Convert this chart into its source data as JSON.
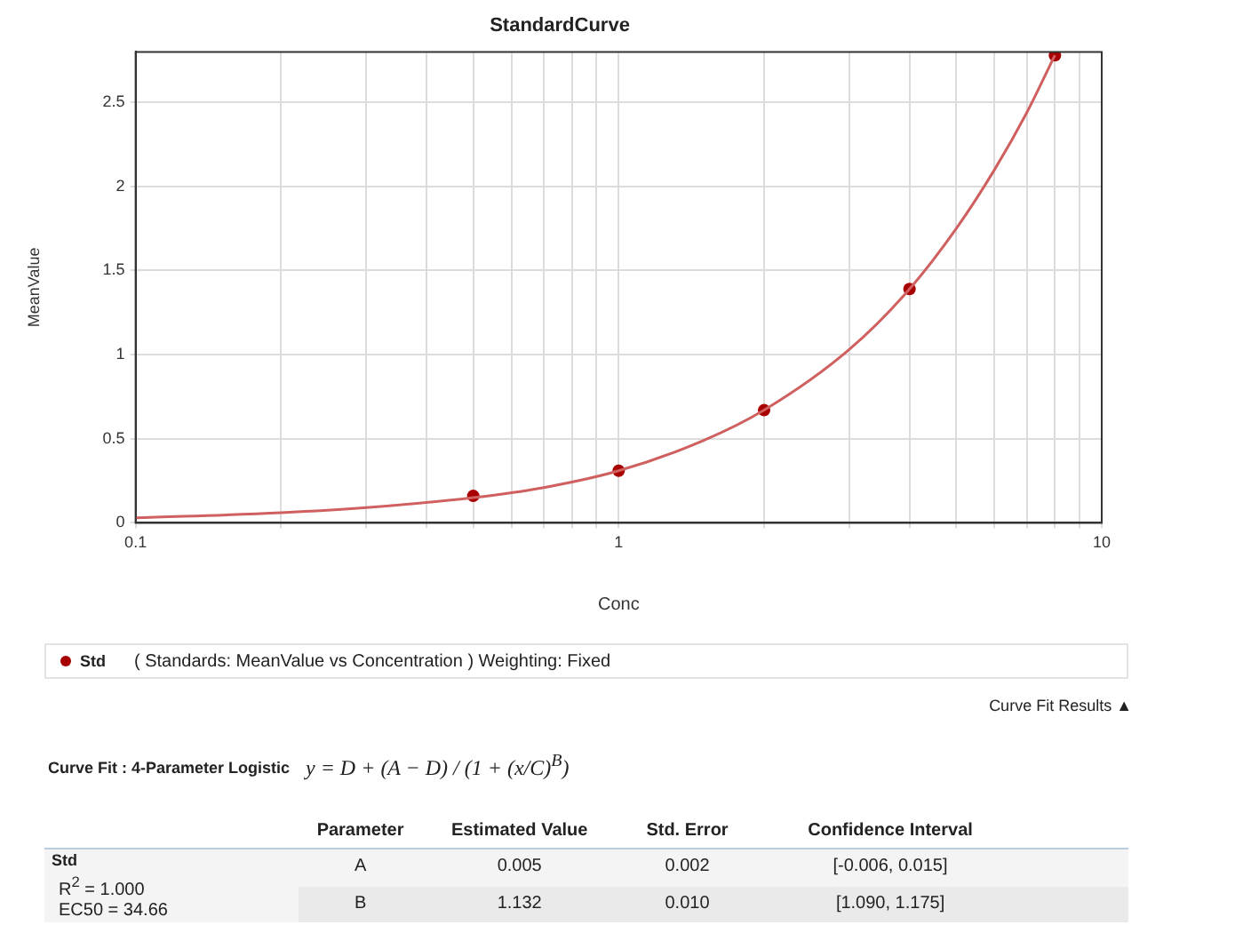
{
  "chart_data": {
    "type": "scatter",
    "title": "StandardCurve",
    "xlabel": "Conc",
    "ylabel": "MeanValue",
    "log": "x",
    "xlim": [
      0.1,
      10
    ],
    "xticks": [
      0.1,
      {
        "value": 0.2,
        "label": null
      },
      {
        "value": 0.3,
        "label": null
      },
      {
        "value": 0.4,
        "label": null
      },
      {
        "value": 0.5,
        "label": null
      },
      {
        "value": 0.6,
        "label": null
      },
      {
        "value": 0.7,
        "label": null
      },
      {
        "value": 0.8,
        "label": null
      },
      {
        "value": 0.9,
        "label": null
      },
      1,
      {
        "value": 2,
        "label": null
      },
      {
        "value": 3,
        "label": null
      },
      {
        "value": 4,
        "label": null
      },
      {
        "value": 5,
        "label": null
      },
      {
        "value": 6,
        "label": null
      },
      {
        "value": 7,
        "label": null
      },
      {
        "value": 8,
        "label": null
      },
      {
        "value": 9,
        "label": null
      },
      10
    ],
    "ylim": [
      0,
      2.8
    ],
    "yticks": [
      0,
      0.5,
      1,
      1.5,
      2,
      2.5
    ],
    "grid": true,
    "legend": "bottom",
    "series": [
      {
        "type": "line",
        "color": "#d06060",
        "marker": "none",
        "line_style": "solid",
        "x": [
          0.1,
          0.2,
          0.3,
          0.5,
          0.7,
          1,
          1.5,
          2,
          3,
          4,
          5,
          6,
          7,
          8
        ],
        "values": [
          0.03,
          0.06,
          0.09,
          0.15,
          0.21,
          0.31,
          0.49,
          0.67,
          1.03,
          1.39,
          1.75,
          2.1,
          2.44,
          2.78
        ]
      },
      {
        "type": "scatter",
        "name": "Std",
        "color": "#a80000",
        "marker": "circle",
        "x": [
          0.5,
          1,
          2,
          4,
          8
        ],
        "values": [
          0.16,
          0.31,
          0.67,
          1.39,
          2.78
        ]
      }
    ],
    "annotations": [
      "( Standards: MeanValue vs Concentration )  Weighting: Fixed",
      "Curve Fit Results ▲",
      "Curve Fit : 4-Parameter Logistic",
      "y =  D  +  (A − D) / (1 + (x/C)$^{B}$)",
      "Parameter",
      "Estimated Value",
      "Std. Error",
      "Confidence Interval",
      "Std",
      "R$^{2}$ = 1.000",
      "EC50 = 34.66",
      "A",
      "0.005",
      "0.002",
      "[-0.006, 0.015]",
      "B",
      "1.132",
      "0.010",
      "[1.090, 1.175]"
    ]
  }
}
